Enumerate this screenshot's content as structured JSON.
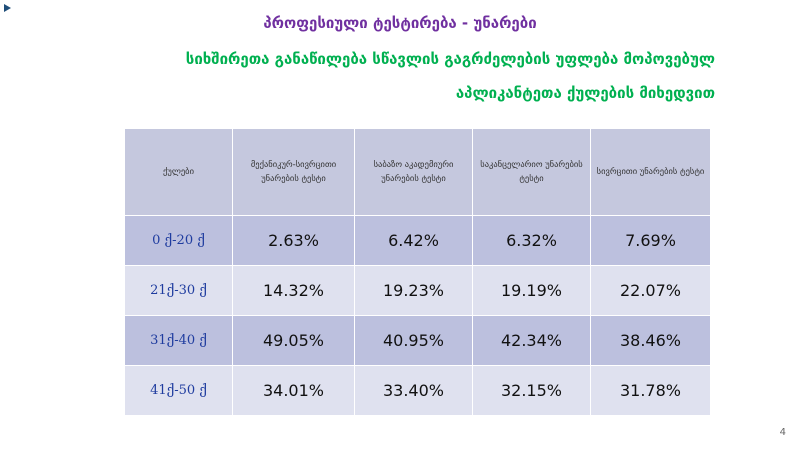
{
  "title": "პროფესიული ტესტირება - უნარები",
  "subtitle_line1": "სიხშირეთა განაწილება სწავლის გაგრძელების უფლება მოპოვებულ",
  "subtitle_line2": "აპლიკანტეთა ქულების მიხედვით",
  "table": {
    "headers": [
      "ქულები",
      "მექანიკურ-სივრცითი უნარების ტესტი",
      "საბაზო აკადემიური უნარების ტესტი",
      "საკანცელარიო უნარების ტესტი",
      "სივრცითი უნარების ტესტი"
    ],
    "rows": [
      {
        "label": "0 ქ-20 ქ",
        "values": [
          "2.63%",
          "6.42%",
          "6.32%",
          "7.69%"
        ]
      },
      {
        "label": "21ქ-30 ქ",
        "values": [
          "14.32%",
          "19.23%",
          "19.19%",
          "22.07%"
        ]
      },
      {
        "label": "31ქ-40 ქ",
        "values": [
          "49.05%",
          "40.95%",
          "42.34%",
          "38.46%"
        ]
      },
      {
        "label": "41ქ-50 ქ",
        "values": [
          "34.01%",
          "33.40%",
          "32.15%",
          "31.78%"
        ]
      }
    ]
  },
  "page_number": "4"
}
